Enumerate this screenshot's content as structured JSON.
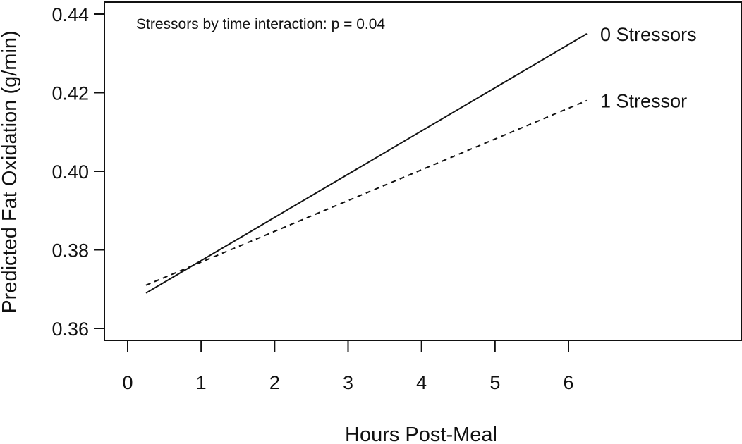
{
  "chart_data": {
    "type": "line",
    "title": "",
    "xlabel": "Hours Post-Meal",
    "ylabel": "Predicted Fat Oxidation (g/min)",
    "xlim": [
      0,
      6
    ],
    "ylim": [
      0.36,
      0.44
    ],
    "x_ticks": [
      "0",
      "1",
      "2",
      "3",
      "4",
      "5",
      "6"
    ],
    "y_ticks": [
      "0.36",
      "0.38",
      "0.40",
      "0.42",
      "0.44"
    ],
    "grid": false,
    "annotation": "Stressors by time interaction: p = 0.04",
    "series": [
      {
        "name": "0 Stressors",
        "line_style": "solid",
        "color": "#111111",
        "x": [
          0.25,
          6.25
        ],
        "y": [
          0.369,
          0.435
        ]
      },
      {
        "name": "1 Stressor",
        "line_style": "dashed",
        "color": "#111111",
        "x": [
          0.25,
          6.25
        ],
        "y": [
          0.371,
          0.418
        ]
      }
    ]
  }
}
